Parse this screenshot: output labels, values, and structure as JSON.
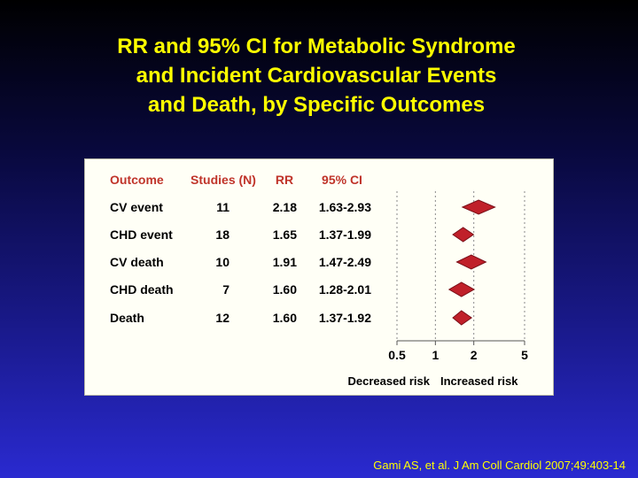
{
  "title": {
    "line1": "RR and 95% CI for Metabolic Syndrome",
    "line2": "and Incident Cardiovascular Events",
    "line3": "and Death, by Specific Outcomes"
  },
  "table": {
    "headers": [
      "Outcome",
      "Studies (N)",
      "RR",
      "95% CI"
    ],
    "rows": [
      {
        "outcome": "CV event",
        "studies": "11",
        "rr": "2.18",
        "ci": "1.63-2.93"
      },
      {
        "outcome": "CHD event",
        "studies": "18",
        "rr": "1.65",
        "ci": "1.37-1.99"
      },
      {
        "outcome": "CV death",
        "studies": "10",
        "rr": "1.91",
        "ci": "1.47-2.49"
      },
      {
        "outcome": "CHD death",
        "studies": "7",
        "rr": "1.60",
        "ci": "1.28-2.01"
      },
      {
        "outcome": "Death",
        "studies": "12",
        "rr": "1.60",
        "ci": "1.37-1.92"
      }
    ]
  },
  "chart_data": {
    "type": "forest",
    "scale": "log",
    "xlim": [
      0.5,
      5
    ],
    "xticks": [
      "0.5",
      "1",
      "2",
      "5"
    ],
    "tick_values": [
      0.5,
      1,
      2,
      5
    ],
    "label_left": "Decreased risk",
    "label_right": "Increased risk",
    "points": [
      {
        "label": "CV event",
        "rr": 2.18,
        "lower": 1.63,
        "upper": 2.93
      },
      {
        "label": "CHD event",
        "rr": 1.65,
        "lower": 1.37,
        "upper": 1.99
      },
      {
        "label": "CV death",
        "rr": 1.91,
        "lower": 1.47,
        "upper": 2.49
      },
      {
        "label": "CHD death",
        "rr": 1.6,
        "lower": 1.28,
        "upper": 2.01
      },
      {
        "label": "Death",
        "rr": 1.6,
        "lower": 1.37,
        "upper": 1.92
      }
    ]
  },
  "colors": {
    "title": "#ffff00",
    "header": "#c0342a",
    "diamond_fill": "#c0202a",
    "diamond_stroke": "#7a1018",
    "text": "#000000"
  },
  "citation": "Gami AS, et al. J Am Coll Cardiol 2007;49:403-14"
}
